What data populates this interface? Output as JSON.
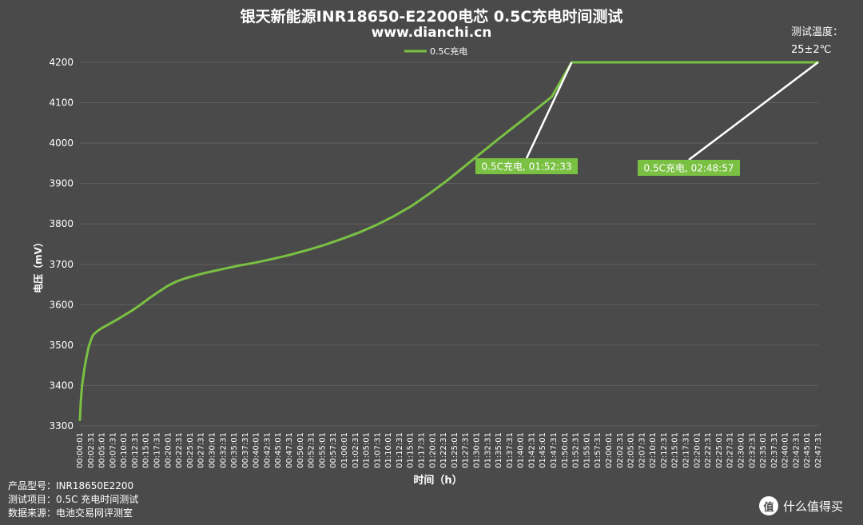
{
  "title": "银天新能源INR18650-E2200电芯 0.5C充电时间测试",
  "subtitle": "www.dianchi.cn",
  "temperature": {
    "label": "测试温度：",
    "value": "25±2℃"
  },
  "footer": {
    "line1": "产品型号：INR18650E2200",
    "line2": "测试项目：0.5C 充电时间测试",
    "line3": "数据来源：电池交易网评测室"
  },
  "brand": {
    "icon": "zhi-icon",
    "icon_text": "值",
    "text": "什么值得买"
  },
  "colors": {
    "background": "#4a4a4a",
    "series": "#7ac143",
    "grid": "#5f5f5f",
    "annotation_line": "#ffffff"
  },
  "chart_data": {
    "type": "line",
    "xlabel": "时间（h）",
    "ylabel": "电压（mV）",
    "ylim": [
      3300,
      4200
    ],
    "yticks": [
      3300,
      3400,
      3500,
      3600,
      3700,
      3800,
      3900,
      4000,
      4100,
      4200
    ],
    "x_tick_labels": [
      "00:00:01",
      "00:02:31",
      "00:05:01",
      "00:07:31",
      "00:10:01",
      "00:12:31",
      "00:15:01",
      "00:17:31",
      "00:20:01",
      "00:22:31",
      "00:25:01",
      "00:27:31",
      "00:30:01",
      "00:32:31",
      "00:35:01",
      "00:37:31",
      "00:40:01",
      "00:42:31",
      "00:45:01",
      "00:47:31",
      "00:50:01",
      "00:52:31",
      "00:55:01",
      "00:57:31",
      "01:00:01",
      "01:02:31",
      "01:05:01",
      "01:07:31",
      "01:10:01",
      "01:12:31",
      "01:15:01",
      "01:17:31",
      "01:20:01",
      "01:22:31",
      "01:25:01",
      "01:27:31",
      "01:30:01",
      "01:32:31",
      "01:35:01",
      "01:37:31",
      "01:40:01",
      "01:42:31",
      "01:45:01",
      "01:47:31",
      "01:50:01",
      "01:52:31",
      "01:55:01",
      "01:57:31",
      "02:00:01",
      "02:02:31",
      "02:05:01",
      "02:07:31",
      "02:10:01",
      "02:12:31",
      "02:15:01",
      "02:17:31",
      "02:20:01",
      "02:22:31",
      "02:25:01",
      "02:27:31",
      "02:30:01",
      "02:32:31",
      "02:35:01",
      "02:37:31",
      "02:40:01",
      "02:42:31",
      "02:45:01",
      "02:47:31"
    ],
    "x_range_min": [
      0,
      169
    ],
    "legend_position": "top-center",
    "grid": "horizontal",
    "series": [
      {
        "name": "0.5C充电",
        "points_min_mV": [
          [
            0,
            3315
          ],
          [
            0.2,
            3360
          ],
          [
            0.5,
            3400
          ],
          [
            1,
            3440
          ],
          [
            1.5,
            3470
          ],
          [
            2,
            3495
          ],
          [
            2.5,
            3512
          ],
          [
            3,
            3525
          ],
          [
            4,
            3535
          ],
          [
            5,
            3542
          ],
          [
            8,
            3560
          ],
          [
            10,
            3573
          ],
          [
            12,
            3586
          ],
          [
            14,
            3601
          ],
          [
            16,
            3617
          ],
          [
            18,
            3632
          ],
          [
            20,
            3646
          ],
          [
            22,
            3657
          ],
          [
            24,
            3665
          ],
          [
            26,
            3671
          ],
          [
            28,
            3677
          ],
          [
            30,
            3682
          ],
          [
            33,
            3689
          ],
          [
            36,
            3696
          ],
          [
            40,
            3704
          ],
          [
            44,
            3713
          ],
          [
            48,
            3723
          ],
          [
            52,
            3735
          ],
          [
            56,
            3748
          ],
          [
            60,
            3763
          ],
          [
            64,
            3779
          ],
          [
            68,
            3798
          ],
          [
            72,
            3820
          ],
          [
            76,
            3845
          ],
          [
            80,
            3875
          ],
          [
            84,
            3907
          ],
          [
            88,
            3942
          ],
          [
            92,
            3977
          ],
          [
            96,
            4012
          ],
          [
            100,
            4046
          ],
          [
            104,
            4080
          ],
          [
            108,
            4115
          ],
          [
            112.55,
            4200
          ],
          [
            168.95,
            4200
          ]
        ]
      }
    ],
    "annotations": [
      {
        "label": "0.5C充电, 01:52:33",
        "x_min": 112.55,
        "y_mV": 4200
      },
      {
        "label": "0.5C充电, 02:48:57",
        "x_min": 168.95,
        "y_mV": 4200
      }
    ]
  }
}
